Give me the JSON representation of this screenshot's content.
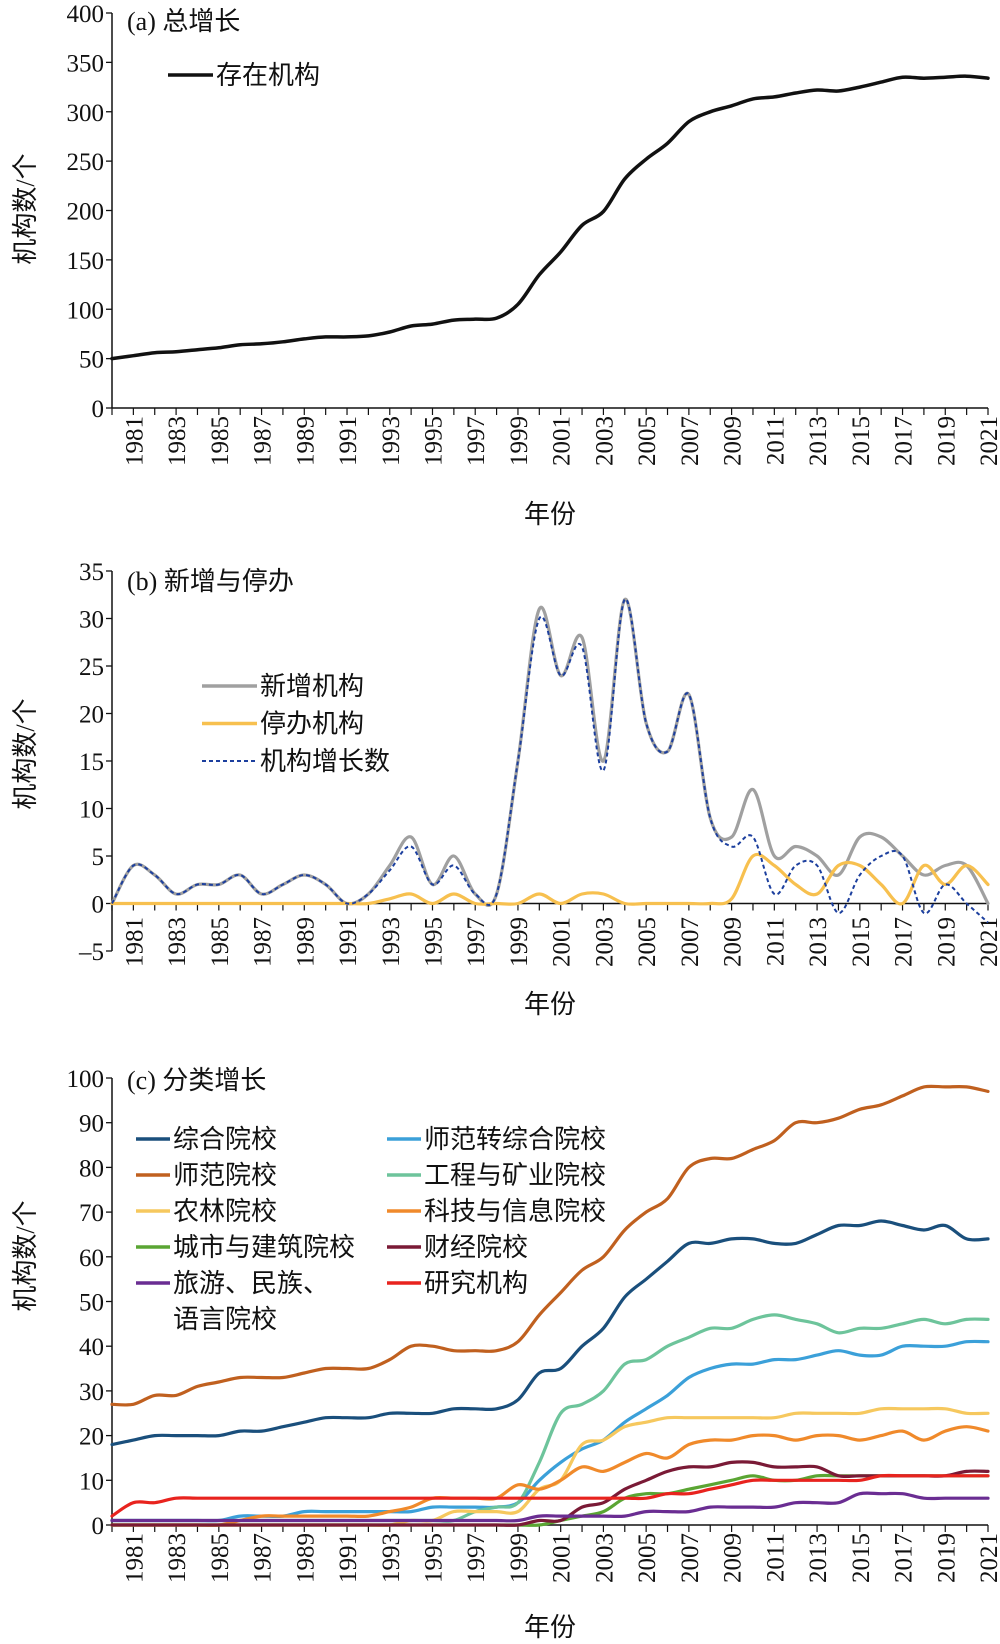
{
  "chart_data": [
    {
      "type": "line",
      "title": "(a) 总增长",
      "xlabel": "年份",
      "ylabel": "机构数/个",
      "x": [
        1980,
        1981,
        1982,
        1983,
        1984,
        1985,
        1986,
        1987,
        1988,
        1989,
        1990,
        1991,
        1992,
        1993,
        1994,
        1995,
        1996,
        1997,
        1998,
        1999,
        2000,
        2001,
        2002,
        2003,
        2004,
        2005,
        2006,
        2007,
        2008,
        2009,
        2010,
        2011,
        2012,
        2013,
        2014,
        2015,
        2016,
        2017,
        2018,
        2019,
        2020,
        2021
      ],
      "xticks": [
        1981,
        1983,
        1985,
        1987,
        1989,
        1991,
        1993,
        1995,
        1997,
        1999,
        2001,
        2003,
        2005,
        2007,
        2009,
        2011,
        2013,
        2015,
        2017,
        2019,
        2021
      ],
      "ylim": [
        0,
        400
      ],
      "yticks": [
        0,
        50,
        100,
        150,
        200,
        250,
        300,
        350,
        400
      ],
      "legend": "top-left",
      "series": [
        {
          "name": "存在机构",
          "color": "#111111",
          "style": "solid",
          "values": [
            50,
            53,
            56,
            57,
            59,
            61,
            64,
            65,
            67,
            70,
            72,
            72,
            73,
            77,
            83,
            85,
            89,
            90,
            91,
            105,
            135,
            158,
            185,
            199,
            232,
            252,
            268,
            290,
            300,
            306,
            313,
            315,
            319,
            322,
            321,
            325,
            330,
            335,
            334,
            335,
            336,
            334
          ]
        }
      ]
    },
    {
      "type": "line",
      "title": "(b) 新增与停办",
      "xlabel": "年份",
      "ylabel": "机构数/个",
      "x": [
        1980,
        1981,
        1982,
        1983,
        1984,
        1985,
        1986,
        1987,
        1988,
        1989,
        1990,
        1991,
        1992,
        1993,
        1994,
        1995,
        1996,
        1997,
        1998,
        1999,
        2000,
        2001,
        2002,
        2003,
        2004,
        2005,
        2006,
        2007,
        2008,
        2009,
        2010,
        2011,
        2012,
        2013,
        2014,
        2015,
        2016,
        2017,
        2018,
        2019,
        2020,
        2021
      ],
      "xticks": [
        1981,
        1983,
        1985,
        1987,
        1989,
        1991,
        1993,
        1995,
        1997,
        1999,
        2001,
        2003,
        2005,
        2007,
        2009,
        2011,
        2013,
        2015,
        2017,
        2019,
        2021
      ],
      "ylim": [
        -5,
        35
      ],
      "yticks": [
        -5,
        0,
        5,
        10,
        15,
        20,
        25,
        30,
        35
      ],
      "ytick_labels": [
        "–5",
        "0",
        "5",
        "10",
        "15",
        "20",
        "25",
        "30",
        "35"
      ],
      "legend": "upper-left",
      "series": [
        {
          "name": "新增机构",
          "color": "#a0a0a0",
          "style": "solid",
          "values": [
            0,
            4,
            3,
            1,
            2,
            2,
            3,
            1,
            2,
            3,
            2,
            0,
            1,
            4,
            7,
            2,
            5,
            1,
            1,
            15,
            31,
            24,
            28,
            15,
            32,
            19,
            16,
            22,
            9,
            7,
            12,
            5,
            6,
            5,
            3,
            7,
            7,
            5,
            3,
            4,
            4,
            0
          ]
        },
        {
          "name": "停办机构",
          "color": "#f7c04f",
          "style": "solid",
          "values": [
            0,
            0,
            0,
            0,
            0,
            0,
            0,
            0,
            0,
            0,
            0,
            0,
            0,
            0.5,
            1,
            0,
            1,
            0,
            0,
            0,
            1,
            0,
            1,
            1,
            0,
            0,
            0,
            0,
            0,
            0.5,
            5,
            4,
            2,
            1,
            4,
            4,
            2,
            0,
            4,
            2,
            4,
            2
          ]
        },
        {
          "name": "机构增长数",
          "color": "#1c3f9e",
          "style": "dashed",
          "values": [
            0,
            4,
            3,
            1,
            2,
            2,
            3,
            1,
            2,
            3,
            2,
            0,
            1,
            3.5,
            6,
            2,
            4,
            1,
            1,
            15,
            30,
            24,
            27,
            14,
            32,
            19,
            16,
            22,
            9,
            6,
            7,
            1,
            4,
            4,
            -1,
            3,
            5,
            5,
            -1,
            2,
            0,
            -2
          ]
        }
      ]
    },
    {
      "type": "line",
      "title": "(c) 分类增长",
      "xlabel": "年份",
      "ylabel": "机构数/个",
      "x": [
        1980,
        1981,
        1982,
        1983,
        1984,
        1985,
        1986,
        1987,
        1988,
        1989,
        1990,
        1991,
        1992,
        1993,
        1994,
        1995,
        1996,
        1997,
        1998,
        1999,
        2000,
        2001,
        2002,
        2003,
        2004,
        2005,
        2006,
        2007,
        2008,
        2009,
        2010,
        2011,
        2012,
        2013,
        2014,
        2015,
        2016,
        2017,
        2018,
        2019,
        2020,
        2021
      ],
      "xticks": [
        1981,
        1983,
        1985,
        1987,
        1989,
        1991,
        1993,
        1995,
        1997,
        1999,
        2001,
        2003,
        2005,
        2007,
        2009,
        2011,
        2013,
        2015,
        2017,
        2019,
        2021
      ],
      "ylim": [
        0,
        100
      ],
      "yticks": [
        0,
        10,
        20,
        30,
        40,
        50,
        60,
        70,
        80,
        90,
        100
      ],
      "legend": "upper-left, two columns",
      "series": [
        {
          "name": "综合院校",
          "color": "#1a4f7c",
          "values": [
            18,
            19,
            20,
            20,
            20,
            20,
            21,
            21,
            22,
            23,
            24,
            24,
            24,
            25,
            25,
            25,
            26,
            26,
            26,
            28,
            34,
            35,
            40,
            44,
            51,
            55,
            59,
            63,
            63,
            64,
            64,
            63,
            63,
            65,
            67,
            67,
            68,
            67,
            66,
            67,
            64,
            64
          ]
        },
        {
          "name": "师范转综合院校",
          "color": "#3ba0d9",
          "values": [
            1,
            1,
            1,
            1,
            1,
            1,
            2,
            2,
            2,
            3,
            3,
            3,
            3,
            3,
            3,
            4,
            4,
            4,
            4,
            5,
            10,
            14,
            17,
            19,
            23,
            26,
            29,
            33,
            35,
            36,
            36,
            37,
            37,
            38,
            39,
            38,
            38,
            40,
            40,
            40,
            41,
            41
          ]
        },
        {
          "name": "师范院校",
          "color": "#c0601f",
          "values": [
            27,
            27,
            29,
            29,
            31,
            32,
            33,
            33,
            33,
            34,
            35,
            35,
            35,
            37,
            40,
            40,
            39,
            39,
            39,
            41,
            47,
            52,
            57,
            60,
            66,
            70,
            73,
            80,
            82,
            82,
            84,
            86,
            90,
            90,
            91,
            93,
            94,
            96,
            98,
            98,
            98,
            97
          ]
        },
        {
          "name": "工程与矿业院校",
          "color": "#6dc49b",
          "values": [
            1,
            1,
            1,
            1,
            1,
            1,
            1,
            1,
            1,
            1,
            1,
            1,
            1,
            1,
            1,
            1,
            1,
            3,
            4,
            5,
            14,
            25,
            27,
            30,
            36,
            37,
            40,
            42,
            44,
            44,
            46,
            47,
            46,
            45,
            43,
            44,
            44,
            45,
            46,
            45,
            46,
            46
          ]
        },
        {
          "name": "农林院校",
          "color": "#f6c85e",
          "values": [
            0,
            0,
            0,
            0,
            0,
            0,
            0,
            0,
            0,
            0,
            0,
            0,
            0,
            0,
            1,
            1,
            3,
            3,
            3,
            3,
            8,
            10,
            18,
            19,
            22,
            23,
            24,
            24,
            24,
            24,
            24,
            24,
            25,
            25,
            25,
            25,
            26,
            26,
            26,
            26,
            25,
            25
          ]
        },
        {
          "name": "科技与信息院校",
          "color": "#f08a2b",
          "values": [
            0,
            0,
            0,
            0,
            0,
            0,
            1,
            2,
            2,
            2,
            2,
            2,
            2,
            3,
            4,
            6,
            6,
            6,
            6,
            9,
            8,
            10,
            13,
            12,
            14,
            16,
            15,
            18,
            19,
            19,
            20,
            20,
            19,
            20,
            20,
            19,
            20,
            21,
            19,
            21,
            22,
            21
          ]
        },
        {
          "name": "城市与建筑院校",
          "color": "#5aa533",
          "values": [
            0,
            0,
            0,
            0,
            0,
            0,
            0,
            0,
            0,
            0,
            0,
            0,
            0,
            0,
            0,
            0,
            0,
            0,
            0,
            0,
            0,
            1,
            2,
            3,
            6,
            7,
            7,
            8,
            9,
            10,
            11,
            10,
            10,
            11,
            11,
            11,
            11,
            11,
            11,
            11,
            11,
            11
          ]
        },
        {
          "name": "财经院校",
          "color": "#7a1a36",
          "values": [
            0,
            0,
            0,
            0,
            0,
            0,
            0,
            0,
            0,
            0,
            0,
            0,
            0,
            0,
            0,
            0,
            0,
            0,
            0,
            0,
            1,
            1,
            4,
            5,
            8,
            10,
            12,
            13,
            13,
            14,
            14,
            13,
            13,
            13,
            11,
            11,
            11,
            11,
            11,
            11,
            12,
            12
          ]
        },
        {
          "name": "旅游、民族、语言院校",
          "name_lines": [
            "旅游、民族、",
            "语言院校"
          ],
          "color": "#6a2d92",
          "values": [
            1,
            1,
            1,
            1,
            1,
            1,
            1,
            1,
            1,
            1,
            1,
            1,
            1,
            1,
            1,
            1,
            1,
            1,
            1,
            1,
            2,
            2,
            2,
            2,
            2,
            3,
            3,
            3,
            4,
            4,
            4,
            4,
            5,
            5,
            5,
            7,
            7,
            7,
            6,
            6,
            6,
            6
          ]
        },
        {
          "name": "研究机构",
          "color": "#e8231e",
          "values": [
            2,
            5,
            5,
            6,
            6,
            6,
            6,
            6,
            6,
            6,
            6,
            6,
            6,
            6,
            6,
            6,
            6,
            6,
            6,
            6,
            6,
            6,
            6,
            6,
            6,
            6,
            7,
            7,
            8,
            9,
            10,
            10,
            10,
            10,
            10,
            10,
            11,
            11,
            11,
            11,
            11,
            11
          ]
        }
      ]
    }
  ]
}
